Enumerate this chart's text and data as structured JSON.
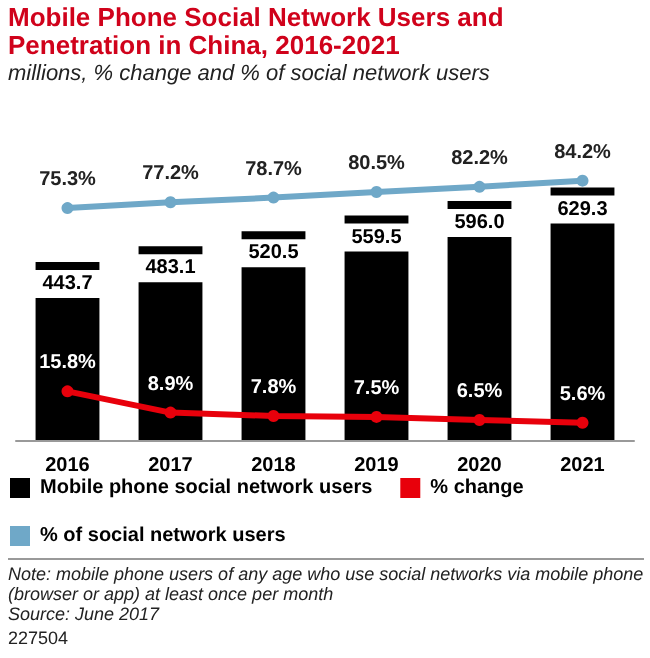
{
  "chart_data": {
    "type": "bar",
    "title": "Mobile Phone Social Network Users and Penetration in China, 2016-2021",
    "subtitle": "millions, % change and % of social network users",
    "categories": [
      "2016",
      "2017",
      "2018",
      "2019",
      "2020",
      "2021"
    ],
    "series": [
      {
        "name": "Mobile phone social network users",
        "color": "#000000",
        "values": [
          443.7,
          483.1,
          520.5,
          559.5,
          596.0,
          629.3
        ],
        "value_labels": [
          "443.7",
          "483.1",
          "520.5",
          "559.5",
          "596.0",
          "629.3"
        ]
      },
      {
        "name": "% change",
        "type": "line",
        "axis": "y2",
        "color": "#e8000b",
        "values": [
          15.8,
          8.9,
          7.8,
          7.5,
          6.5,
          5.6
        ],
        "value_labels": [
          "15.8%",
          "8.9%",
          "7.8%",
          "7.5%",
          "6.5%",
          "5.6%"
        ]
      },
      {
        "name": "% of social network users",
        "type": "line",
        "axis": "y2",
        "color": "#6fa8c8",
        "values": [
          75.3,
          77.2,
          78.7,
          80.5,
          82.2,
          84.2
        ],
        "value_labels": [
          "75.3%",
          "77.2%",
          "78.7%",
          "80.5%",
          "82.2%",
          "84.2%"
        ]
      }
    ],
    "legend": "bottom",
    "marker": "circle",
    "annotations": [
      "Note: mobile phone users of any age who use social networks via mobile phone (browser or app) at least once per month",
      "Source: June 2017",
      "227504"
    ]
  }
}
